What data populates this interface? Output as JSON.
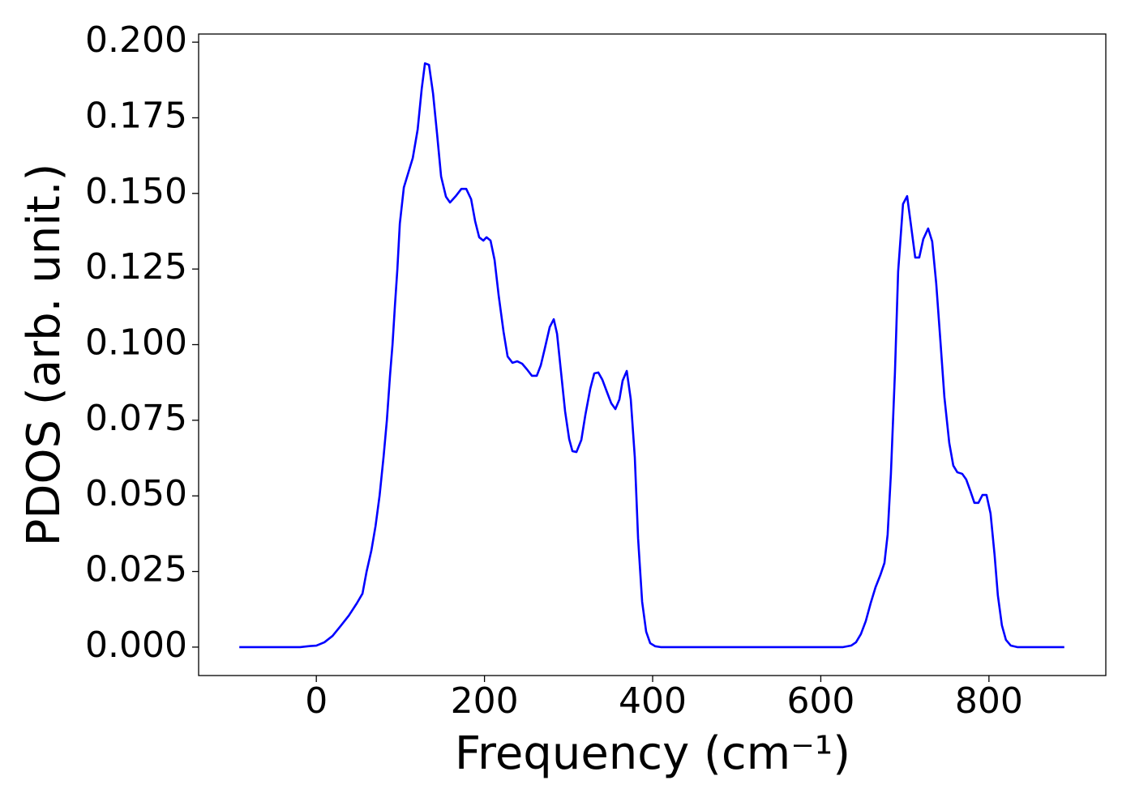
{
  "chart_data": {
    "type": "line",
    "xlabel": "Frequency (cm⁻¹)",
    "ylabel": "PDOS (arb. unit.)",
    "color": "#0000ff",
    "x": [
      -91.6,
      -19.3,
      -9.6,
      0,
      9.6,
      19.3,
      28.9,
      38.6,
      48.2,
      54.9,
      59.8,
      65.5,
      70.4,
      75.2,
      80.0,
      83.9,
      87.7,
      90.6,
      93.5,
      96.4,
      99.3,
      104.1,
      114.7,
      120.5,
      125.3,
      129.2,
      134.0,
      138.8,
      143.6,
      148.4,
      154.2,
      159.0,
      165.8,
      172.5,
      178.3,
      184.1,
      188.9,
      193.7,
      198.6,
      202.4,
      207.2,
      212.0,
      216.9,
      222.7,
      227.5,
      233.3,
      239.0,
      244.8,
      250.6,
      256.4,
      262.2,
      267.0,
      271.8,
      277.6,
      282.4,
      286.3,
      291.1,
      295.9,
      300.7,
      304.6,
      309.4,
      315.2,
      320.0,
      325.8,
      330.6,
      335.4,
      340.2,
      346.0,
      350.8,
      355.7,
      360.5,
      364.3,
      369.2,
      374.0,
      378.8,
      382.7,
      387.5,
      392.3,
      397.1,
      402.9,
      409.6,
      626.5,
      636.1,
      641.9,
      647.7,
      653.5,
      659.3,
      665.1,
      670.8,
      675.7,
      679.5,
      683.4,
      688.2,
      692.0,
      697.8,
      702.7,
      707.5,
      712.3,
      717.1,
      721.9,
      727.7,
      732.5,
      737.3,
      742.2,
      747.0,
      752.8,
      757.6,
      762.4,
      768.2,
      773.0,
      777.8,
      782.7,
      787.5,
      792.3,
      797.1,
      801.9,
      806.7,
      810.6,
      815.4,
      820.2,
      826.0,
      833.7,
      889.6
    ],
    "values": [
      0,
      0,
      0.0003,
      0.0005,
      0.0016,
      0.0037,
      0.007,
      0.0104,
      0.0145,
      0.0177,
      0.025,
      0.032,
      0.04,
      0.05,
      0.063,
      0.075,
      0.09,
      0.1,
      0.113,
      0.125,
      0.14,
      0.152,
      0.1617,
      0.1711,
      0.1845,
      0.193,
      0.1925,
      0.1831,
      0.1697,
      0.1556,
      0.1489,
      0.147,
      0.1491,
      0.1515,
      0.1515,
      0.1481,
      0.1408,
      0.1355,
      0.1344,
      0.1355,
      0.1344,
      0.128,
      0.1162,
      0.1042,
      0.0961,
      0.094,
      0.0945,
      0.0937,
      0.0918,
      0.0897,
      0.0897,
      0.0932,
      0.0988,
      0.1058,
      0.1084,
      0.1036,
      0.0908,
      0.0779,
      0.0688,
      0.0648,
      0.0645,
      0.0685,
      0.0768,
      0.0854,
      0.0905,
      0.0908,
      0.0884,
      0.0841,
      0.0806,
      0.0787,
      0.0819,
      0.0881,
      0.0913,
      0.0819,
      0.0627,
      0.0359,
      0.015,
      0.0051,
      0.0013,
      0.0003,
      0,
      0,
      0.0005,
      0.0016,
      0.0043,
      0.0086,
      0.0145,
      0.0198,
      0.0238,
      0.0278,
      0.0372,
      0.0573,
      0.0908,
      0.1242,
      0.1465,
      0.1491,
      0.139,
      0.1288,
      0.1288,
      0.1349,
      0.1384,
      0.1341,
      0.1202,
      0.1015,
      0.0827,
      0.0675,
      0.06,
      0.0578,
      0.0573,
      0.0554,
      0.0517,
      0.0477,
      0.0477,
      0.0503,
      0.0503,
      0.0442,
      0.0305,
      0.0171,
      0.0072,
      0.0024,
      0.0005,
      0,
      0
    ],
    "xlim": [
      -140,
      939
    ],
    "ylim": [
      -0.0094,
      0.2027
    ],
    "xticks": [
      0,
      200,
      400,
      600,
      800
    ],
    "yticks": [
      {
        "value": 0,
        "label": "0.000"
      },
      {
        "value": 0.025,
        "label": "0.025"
      },
      {
        "value": 0.05,
        "label": "0.050"
      },
      {
        "value": 0.075,
        "label": "0.075"
      },
      {
        "value": 0.1,
        "label": "0.100"
      },
      {
        "value": 0.125,
        "label": "0.125"
      },
      {
        "value": 0.15,
        "label": "0.150"
      },
      {
        "value": 0.175,
        "label": "0.175"
      },
      {
        "value": 0.2,
        "label": "0.200"
      }
    ],
    "grid": false
  }
}
